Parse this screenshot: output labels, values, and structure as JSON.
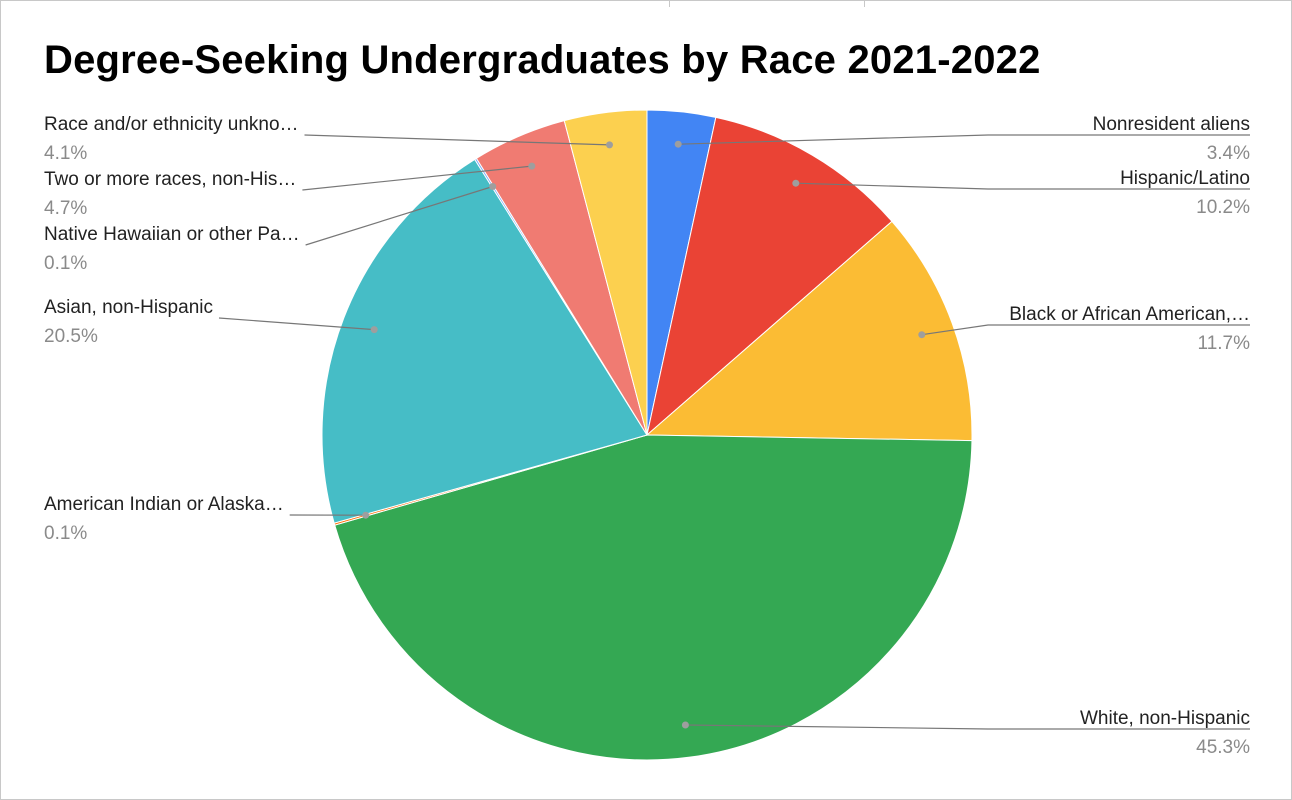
{
  "chart_data": {
    "type": "pie",
    "title": "Degree-Seeking Undergraduates by Race 2021-2022",
    "slices": [
      {
        "label": "Nonresident aliens",
        "value": 3.4,
        "pct_label": "3.4%",
        "color": "#4285f4"
      },
      {
        "label": "Hispanic/Latino",
        "value": 10.2,
        "pct_label": "10.2%",
        "color": "#ea4335"
      },
      {
        "label": "Black or African American,…",
        "value": 11.7,
        "pct_label": "11.7%",
        "color": "#fbbc34"
      },
      {
        "label": "White, non-Hispanic",
        "value": 45.3,
        "pct_label": "45.3%",
        "color": "#34a853"
      },
      {
        "label": "American Indian or Alaska…",
        "value": 0.1,
        "pct_label": "0.1%",
        "color": "#ff6d01"
      },
      {
        "label": "Asian, non-Hispanic",
        "value": 20.5,
        "pct_label": "20.5%",
        "color": "#46bdc6"
      },
      {
        "label": "Native Hawaiian or other Pa…",
        "value": 0.1,
        "pct_label": "0.1%",
        "color": "#7baaf7"
      },
      {
        "label": "Two or more races, non-His…",
        "value": 4.7,
        "pct_label": "4.7%",
        "color": "#f07b72"
      },
      {
        "label": "Race and/or ethnicity unkno…",
        "value": 4.1,
        "pct_label": "4.1%",
        "color": "#fcd04f"
      }
    ]
  }
}
